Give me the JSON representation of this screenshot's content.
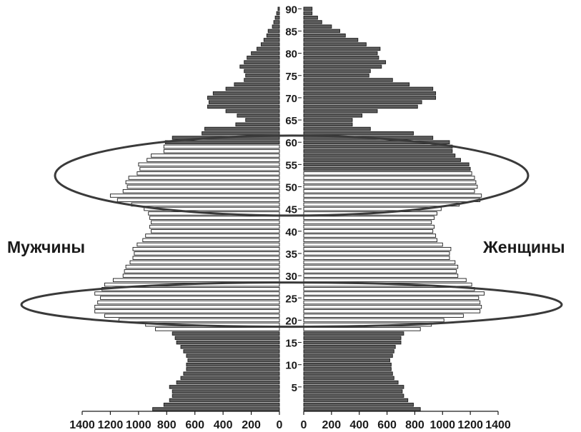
{
  "chart_data": {
    "type": "bar",
    "orientation": "horizontal",
    "layout": "population-pyramid",
    "left_label": "Мужчины",
    "right_label": "Женщины",
    "x_axis": {
      "ticks_left": [
        "1400",
        "1200",
        "1000",
        "800",
        "600",
        "400",
        "200",
        "0"
      ],
      "ticks_right": [
        "0",
        "200",
        "400",
        "600",
        "800",
        "1000",
        "1200",
        "1400"
      ],
      "max": 1400
    },
    "y_axis": {
      "ticks": [
        "5",
        "10",
        "15",
        "20",
        "25",
        "30",
        "35",
        "40",
        "45",
        "50",
        "55",
        "60",
        "65",
        "70",
        "75",
        "80",
        "85",
        "90"
      ],
      "min_age": 0,
      "max_age": 90
    },
    "ages": [
      0,
      1,
      2,
      3,
      4,
      5,
      6,
      7,
      8,
      9,
      10,
      11,
      12,
      13,
      14,
      15,
      16,
      17,
      18,
      19,
      20,
      21,
      22,
      23,
      24,
      25,
      26,
      27,
      28,
      29,
      30,
      31,
      32,
      33,
      34,
      35,
      36,
      37,
      38,
      39,
      40,
      41,
      42,
      43,
      44,
      45,
      46,
      47,
      48,
      49,
      50,
      51,
      52,
      53,
      54,
      55,
      56,
      57,
      58,
      59,
      60,
      61,
      62,
      63,
      64,
      65,
      66,
      67,
      68,
      69,
      70,
      71,
      72,
      73,
      74,
      75,
      76,
      77,
      78,
      79,
      80,
      81,
      82,
      83,
      84,
      85,
      86,
      87,
      88,
      89,
      90
    ],
    "series": [
      {
        "name": "Мужчины",
        "values": [
          900,
          820,
          780,
          760,
          760,
          780,
          730,
          700,
          680,
          660,
          660,
          650,
          660,
          680,
          700,
          730,
          740,
          760,
          880,
          950,
          1140,
          1240,
          1310,
          1310,
          1290,
          1270,
          1310,
          1260,
          1240,
          1180,
          1110,
          1100,
          1090,
          1060,
          1040,
          1030,
          1040,
          1010,
          970,
          950,
          910,
          920,
          910,
          920,
          930,
          960,
          1050,
          1150,
          1200,
          1110,
          1080,
          1090,
          1070,
          1010,
          990,
          1000,
          940,
          910,
          820,
          820,
          810,
          760,
          550,
          530,
          310,
          240,
          300,
          380,
          510,
          500,
          510,
          470,
          380,
          320,
          250,
          240,
          250,
          280,
          250,
          230,
          200,
          160,
          130,
          110,
          90,
          80,
          50,
          40,
          30,
          20,
          10
        ],
        "highlight": [
          false,
          false,
          false,
          false,
          false,
          false,
          false,
          false,
          false,
          false,
          false,
          false,
          false,
          false,
          false,
          false,
          false,
          false,
          true,
          true,
          true,
          true,
          true,
          true,
          true,
          true,
          true,
          true,
          true,
          true,
          true,
          true,
          true,
          true,
          true,
          true,
          true,
          true,
          true,
          true,
          true,
          true,
          true,
          true,
          true,
          true,
          true,
          true,
          true,
          true,
          true,
          true,
          true,
          true,
          true,
          true,
          true,
          true,
          true,
          true,
          false,
          false,
          false,
          false,
          false,
          false,
          false,
          false,
          false,
          false,
          false,
          false,
          false,
          false,
          false,
          false,
          false,
          false,
          false,
          false,
          false,
          false,
          false,
          false,
          false,
          false,
          false,
          false,
          false,
          false,
          false
        ]
      },
      {
        "name": "Женщины",
        "values": [
          840,
          790,
          750,
          720,
          710,
          720,
          680,
          650,
          640,
          630,
          630,
          620,
          640,
          650,
          660,
          700,
          700,
          720,
          840,
          920,
          1010,
          1150,
          1270,
          1280,
          1270,
          1260,
          1300,
          1230,
          1210,
          1170,
          1110,
          1100,
          1110,
          1090,
          1050,
          1050,
          1060,
          1000,
          960,
          950,
          930,
          940,
          920,
          940,
          960,
          990,
          1120,
          1270,
          1280,
          1230,
          1250,
          1240,
          1230,
          1210,
          1200,
          1190,
          1130,
          1090,
          1070,
          1070,
          1050,
          930,
          790,
          480,
          350,
          350,
          420,
          530,
          820,
          850,
          950,
          950,
          930,
          760,
          640,
          470,
          480,
          560,
          590,
          540,
          530,
          550,
          450,
          390,
          300,
          260,
          200,
          130,
          100,
          60,
          60
        ],
        "highlight": [
          false,
          false,
          false,
          false,
          false,
          false,
          false,
          false,
          false,
          false,
          false,
          false,
          false,
          false,
          false,
          false,
          false,
          false,
          true,
          true,
          true,
          true,
          true,
          true,
          true,
          true,
          true,
          true,
          true,
          true,
          true,
          true,
          true,
          true,
          true,
          true,
          true,
          true,
          true,
          true,
          true,
          true,
          true,
          true,
          true,
          true,
          true,
          true,
          true,
          true,
          true,
          true,
          true,
          true,
          false,
          false,
          false,
          false,
          false,
          false,
          false,
          false,
          false,
          false,
          false,
          false,
          false,
          false,
          false,
          false,
          false,
          false,
          false,
          false,
          false,
          false,
          false,
          false,
          false,
          false,
          false,
          false,
          false,
          false,
          false,
          false,
          false,
          false,
          false,
          false,
          false
        ]
      }
    ],
    "highlighted_age_ranges": [
      [
        19,
        28
      ],
      [
        44,
        61
      ]
    ],
    "colors": {
      "bar_dark": "#5c5c5c",
      "bar_light": "#ffffff",
      "stroke": "#1a1a1a",
      "ellipse": "#3a3a3a"
    },
    "grid": false,
    "legend": "none"
  }
}
